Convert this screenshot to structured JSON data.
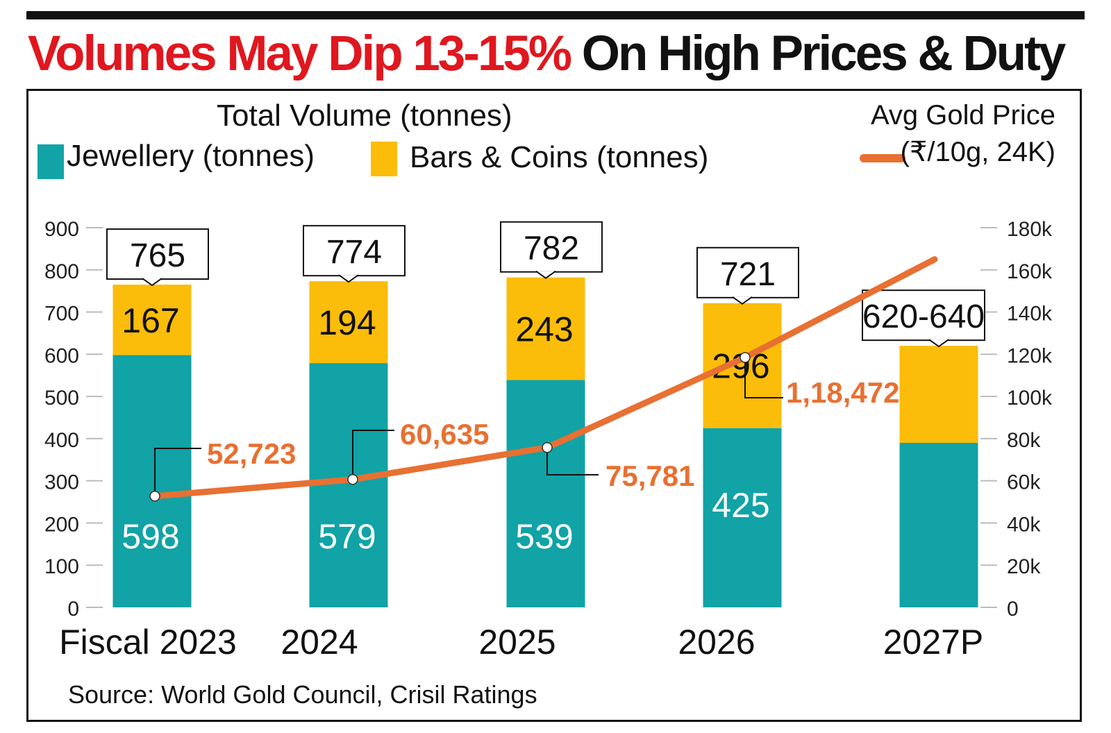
{
  "headline": {
    "red_part": "Volumes May Dip 13-15%",
    "black_part": "On High Prices & Duty"
  },
  "legend": {
    "total": "Total Volume (tonnes)",
    "jewellery": "Jewellery (tonnes)",
    "bars_coins": "Bars & Coins (tonnes)",
    "price_title": "Avg Gold Price",
    "price_unit": "(₹/10g, 24K)"
  },
  "colors": {
    "jewellery": "#11a3a6",
    "bars_coins": "#fbbd0a",
    "price_line": "#e87032",
    "price_label": "#e87032"
  },
  "source": "Source: World Gold Council, Crisil Ratings",
  "chart_data": {
    "type": "bar",
    "stacked": true,
    "categories": [
      "Fiscal 2023",
      "2024",
      "2025",
      "2026",
      "2027P"
    ],
    "series": [
      {
        "name": "Jewellery (tonnes)",
        "values": [
          598,
          579,
          539,
          425,
          390
        ],
        "labels": [
          "598",
          "579",
          "539",
          "425",
          ""
        ]
      },
      {
        "name": "Bars & Coins (tonnes)",
        "values": [
          167,
          194,
          243,
          296,
          230
        ],
        "labels": [
          "167",
          "194",
          "243",
          "296",
          ""
        ]
      }
    ],
    "totals": [
      "765",
      "774",
      "782",
      "721",
      "620-640"
    ],
    "total_values": [
      765,
      774,
      782,
      721,
      620
    ],
    "line": {
      "name": "Avg Gold Price (₹/10g, 24K)",
      "axis": "right",
      "values": [
        52723,
        60635,
        75781,
        118472,
        165000
      ],
      "labels": [
        "52,723",
        "60,635",
        "75,781",
        "1,18,472",
        ""
      ]
    },
    "y_left": {
      "ylim": [
        0,
        900
      ],
      "ticks": [
        "0",
        "100",
        "200",
        "300",
        "400",
        "500",
        "600",
        "700",
        "800",
        "900"
      ]
    },
    "y_right": {
      "ylim": [
        0,
        180000
      ],
      "ticks": [
        "0",
        "20k",
        "40k",
        "60k",
        "80k",
        "100k",
        "120k",
        "140k",
        "160k",
        "180k"
      ]
    },
    "grid": false,
    "legend_position": "top"
  }
}
